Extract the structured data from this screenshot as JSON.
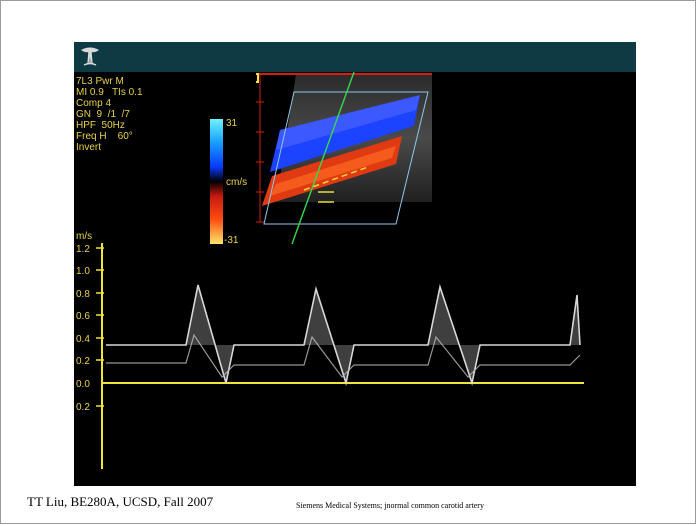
{
  "settings": [
    "7L3 Pwr M",
    "MI 0.9   TIs 0.1",
    "Comp 4",
    "GN  9  /1  /7",
    "HPF  50Hz",
    "Freq H    60°",
    "Invert"
  ],
  "colorbar": {
    "top": "31",
    "unit": "cm/s",
    "bottom": "-31"
  },
  "waveform": {
    "unit": "m/s",
    "ticks": [
      "1.2",
      "1.0",
      "0.8",
      "0.6",
      "0.4",
      "0.2",
      "0.0",
      "0.2"
    ]
  },
  "footer": {
    "left": "TT Liu, BE280A, UCSD, Fall 2007",
    "right": "Siemens Medical Systems; jnormal common carotid artery"
  },
  "colors": {
    "screen_bg": "#000000",
    "top_bar": "#0d3a43",
    "text_yellow": "#e8d24a",
    "axis_yellow": "#f1e43a",
    "vessel_red": "#e03a12",
    "vessel_blue": "#1c43ff"
  }
}
